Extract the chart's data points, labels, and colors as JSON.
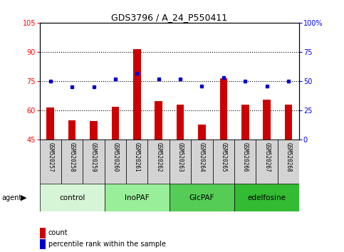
{
  "title": "GDS3796 / A_24_P550411",
  "samples": [
    "GSM520257",
    "GSM520258",
    "GSM520259",
    "GSM520260",
    "GSM520261",
    "GSM520262",
    "GSM520263",
    "GSM520264",
    "GSM520265",
    "GSM520266",
    "GSM520267",
    "GSM520268"
  ],
  "counts": [
    61.5,
    55.0,
    54.5,
    62.0,
    91.5,
    65.0,
    63.0,
    53.0,
    76.5,
    63.0,
    65.5,
    63.0
  ],
  "percentile_ranks": [
    50,
    45,
    45,
    52,
    57,
    52,
    52,
    46,
    53,
    50,
    46,
    50
  ],
  "groups": [
    {
      "label": "control",
      "start": 0,
      "end": 3,
      "color": "#d6f5d6"
    },
    {
      "label": "InoPAF",
      "start": 3,
      "end": 6,
      "color": "#99ee99"
    },
    {
      "label": "GlcPAF",
      "start": 6,
      "end": 9,
      "color": "#55cc55"
    },
    {
      "label": "edelfosine",
      "start": 9,
      "end": 12,
      "color": "#33bb33"
    }
  ],
  "ylim_left": [
    45,
    105
  ],
  "ylim_right": [
    0,
    100
  ],
  "yticks_left": [
    45,
    60,
    75,
    90,
    105
  ],
  "yticks_right": [
    0,
    25,
    50,
    75,
    100
  ],
  "ytick_labels_left": [
    "45",
    "60",
    "75",
    "90",
    "105"
  ],
  "ytick_labels_right": [
    "0",
    "25",
    "50",
    "75",
    "100%"
  ],
  "bar_color": "#cc0000",
  "marker_color": "#0000cc",
  "legend_count_color": "#cc0000",
  "legend_pct_color": "#0000cc",
  "gridline_y": [
    60,
    75,
    90
  ]
}
